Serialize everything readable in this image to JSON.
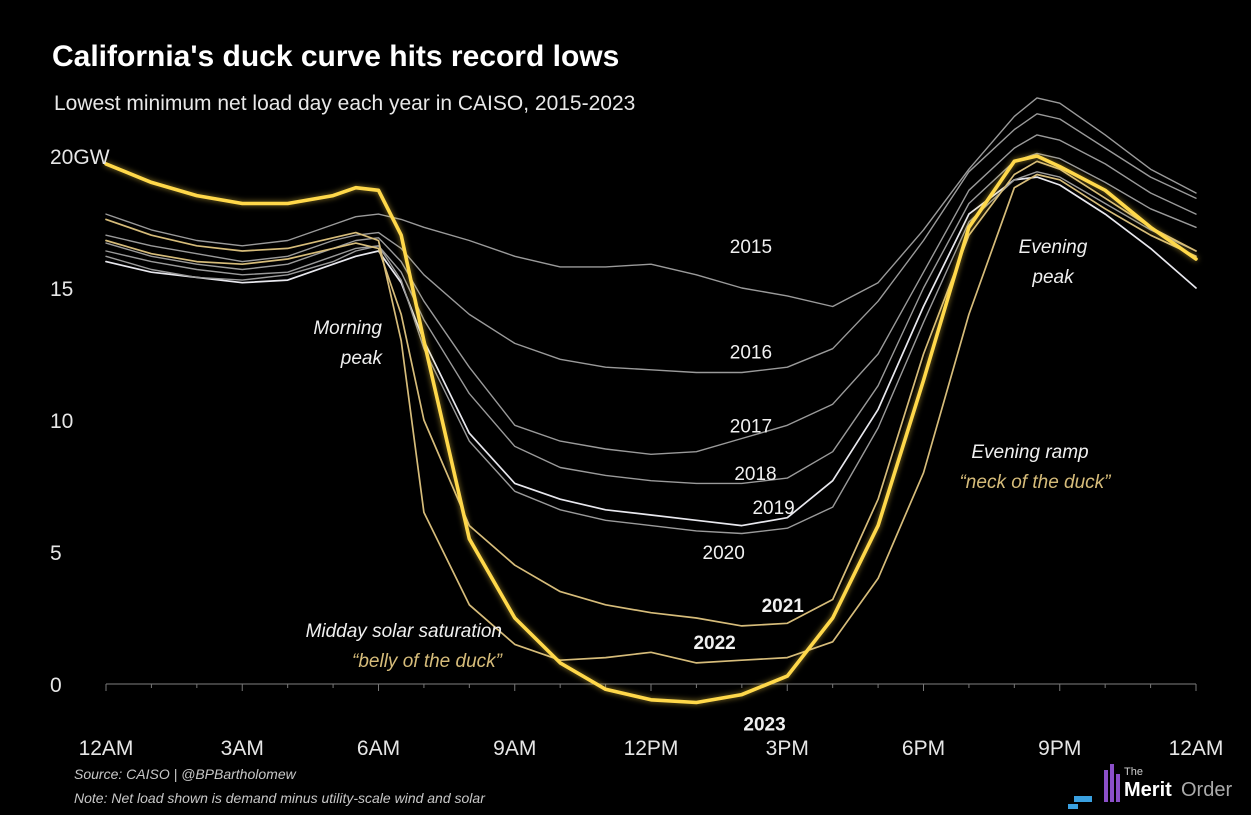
{
  "title": "California's duck curve hits record lows",
  "subtitle": "Lowest minimum net load day each year in CAISO, 2015-2023",
  "footer": {
    "source": "Source: CAISO | @BPBartholomew",
    "note": "Note: Net load shown is demand minus utility-scale wind and solar"
  },
  "logo": {
    "the": "The",
    "merit": "Merit",
    "order": "Order"
  },
  "colors": {
    "background": "#000000",
    "gray_line": "#9a9a9a",
    "white_line": "#e8e8ee",
    "gold": "#ffd84a",
    "tan": "#d6bc7a",
    "logo_purple": "#8b4fc8",
    "logo_blue": "#3aa0e0"
  },
  "annotations": {
    "morning_peak": [
      "Morning",
      "peak"
    ],
    "evening_peak": [
      "Evening",
      "peak"
    ],
    "evening_ramp": [
      "Evening ramp",
      "“neck of the duck”"
    ],
    "midday": [
      "Midday solar saturation",
      "“belly of the duck”"
    ]
  },
  "chart_data": {
    "type": "line",
    "title": "California's duck curve hits record lows",
    "subtitle": "Lowest minimum net load day each year in CAISO, 2015-2023",
    "x_ticks": [
      "12AM",
      "3AM",
      "6AM",
      "9AM",
      "12PM",
      "3PM",
      "6PM",
      "9PM",
      "12AM"
    ],
    "y_ticks": [
      "0",
      "5",
      "10",
      "15",
      "20GW"
    ],
    "y_tick_values": [
      0,
      5,
      10,
      15,
      20
    ],
    "x_unit": "hour of day",
    "y_unit": "GW",
    "xlim": [
      0,
      24
    ],
    "ylim": [
      -1.5,
      22
    ],
    "x": [
      0,
      1,
      2,
      3,
      4,
      5,
      5.5,
      6,
      6.5,
      7,
      8,
      9,
      10,
      11,
      12,
      13,
      14,
      15,
      16,
      17,
      18,
      19,
      20,
      20.5,
      21,
      22,
      23,
      24
    ],
    "series": [
      {
        "name": "2015",
        "style": "gray",
        "label_at": [
          14.2,
          16.6
        ],
        "label_bold": false,
        "values": [
          17.8,
          17.2,
          16.8,
          16.6,
          16.8,
          17.4,
          17.7,
          17.8,
          17.6,
          17.3,
          16.8,
          16.2,
          15.8,
          15.8,
          15.9,
          15.5,
          15.0,
          14.7,
          14.3,
          15.2,
          17.2,
          19.5,
          21.5,
          22.2,
          22.0,
          20.8,
          19.5,
          18.6
        ]
      },
      {
        "name": "2016",
        "style": "gray",
        "label_at": [
          14.2,
          12.6
        ],
        "label_bold": false,
        "values": [
          17.0,
          16.6,
          16.3,
          16.0,
          16.2,
          16.8,
          17.0,
          17.1,
          16.5,
          15.5,
          14.0,
          12.9,
          12.3,
          12.0,
          11.9,
          11.8,
          11.8,
          12.0,
          12.7,
          14.5,
          16.8,
          19.4,
          21.0,
          21.6,
          21.4,
          20.3,
          19.2,
          18.4
        ]
      },
      {
        "name": "2017",
        "style": "gray",
        "label_at": [
          14.2,
          9.8
        ],
        "label_bold": false,
        "values": [
          16.7,
          16.2,
          15.9,
          15.7,
          15.9,
          16.5,
          16.8,
          16.9,
          16.0,
          14.5,
          12.0,
          9.8,
          9.2,
          8.9,
          8.7,
          8.8,
          9.3,
          9.8,
          10.6,
          12.5,
          15.6,
          18.7,
          20.3,
          20.8,
          20.6,
          19.7,
          18.6,
          17.8
        ]
      },
      {
        "name": "2018",
        "style": "gray",
        "label_at": [
          14.3,
          8.0
        ],
        "label_bold": false,
        "values": [
          16.4,
          16.0,
          15.7,
          15.5,
          15.6,
          16.2,
          16.5,
          16.6,
          15.6,
          13.8,
          11.0,
          9.0,
          8.2,
          7.9,
          7.7,
          7.6,
          7.6,
          7.8,
          8.8,
          11.3,
          15.0,
          18.2,
          19.8,
          20.1,
          19.9,
          19.0,
          18.0,
          17.3
        ]
      },
      {
        "name": "2019",
        "style": "white",
        "label_at": [
          14.7,
          6.7
        ],
        "label_bold": false,
        "values": [
          16.0,
          15.6,
          15.4,
          15.2,
          15.3,
          15.9,
          16.2,
          16.4,
          15.2,
          13.0,
          9.5,
          7.6,
          7.0,
          6.6,
          6.4,
          6.2,
          6.0,
          6.3,
          7.7,
          10.4,
          14.3,
          17.8,
          19.1,
          19.2,
          18.9,
          17.8,
          16.5,
          15.0
        ]
      },
      {
        "name": "2020",
        "style": "gray",
        "label_at": [
          13.6,
          5.0
        ],
        "label_bold": false,
        "values": [
          16.2,
          15.7,
          15.4,
          15.3,
          15.5,
          16.0,
          16.4,
          16.6,
          15.3,
          12.7,
          9.2,
          7.3,
          6.6,
          6.2,
          6.0,
          5.8,
          5.7,
          5.9,
          6.7,
          9.7,
          13.7,
          17.5,
          19.1,
          19.4,
          19.2,
          18.2,
          17.2,
          16.4
        ]
      },
      {
        "name": "2021",
        "style": "tan",
        "label_at": [
          14.9,
          3.0
        ],
        "label_bold": true,
        "values": [
          16.8,
          16.3,
          16.0,
          15.9,
          16.1,
          16.5,
          16.7,
          16.5,
          14.0,
          10.0,
          6.0,
          4.5,
          3.5,
          3.0,
          2.7,
          2.5,
          2.2,
          2.3,
          3.2,
          7.0,
          12.5,
          17.0,
          19.3,
          19.8,
          19.5,
          18.4,
          17.3,
          16.4
        ]
      },
      {
        "name": "2022",
        "style": "tan",
        "label_at": [
          13.4,
          1.6
        ],
        "label_bold": true,
        "values": [
          17.6,
          17.0,
          16.6,
          16.4,
          16.5,
          16.9,
          17.1,
          16.8,
          13.0,
          6.5,
          3.0,
          1.5,
          0.9,
          1.0,
          1.2,
          0.8,
          0.9,
          1.0,
          1.6,
          4.0,
          8.0,
          14.0,
          18.8,
          19.3,
          19.1,
          18.0,
          17.0,
          16.2
        ]
      },
      {
        "name": "2023",
        "style": "gold",
        "label_at": [
          14.5,
          -1.5
        ],
        "label_bold": true,
        "values": [
          19.7,
          19.0,
          18.5,
          18.2,
          18.2,
          18.5,
          18.8,
          18.7,
          17.0,
          13.0,
          5.5,
          2.5,
          0.8,
          -0.2,
          -0.6,
          -0.7,
          -0.4,
          0.3,
          2.5,
          6.0,
          11.5,
          17.3,
          19.8,
          20.0,
          19.6,
          18.7,
          17.3,
          16.1
        ]
      }
    ]
  }
}
